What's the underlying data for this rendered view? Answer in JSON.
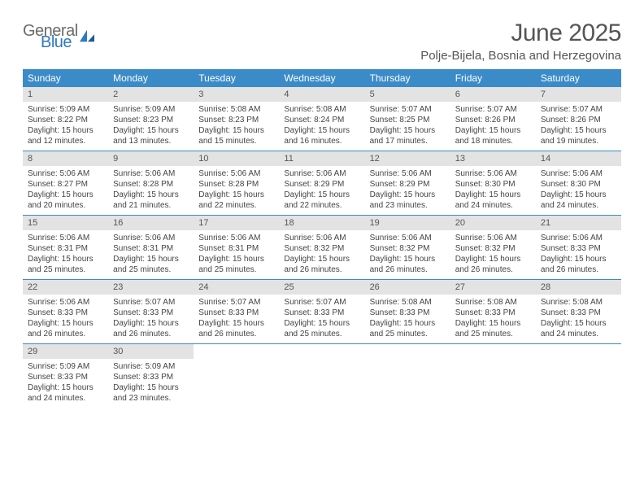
{
  "logo": {
    "general": "General",
    "blue": "Blue"
  },
  "title": "June 2025",
  "location": "Polje-Bijela, Bosnia and Herzegovina",
  "colors": {
    "header_bg": "#3b8bc9",
    "header_text": "#ffffff",
    "daynum_bg": "#e3e3e3",
    "week_border": "#3b8bc9",
    "logo_gray": "#6b6b6b",
    "logo_blue": "#2f78c2",
    "body_text": "#444444"
  },
  "day_names": [
    "Sunday",
    "Monday",
    "Tuesday",
    "Wednesday",
    "Thursday",
    "Friday",
    "Saturday"
  ],
  "weeks": [
    [
      {
        "n": "1",
        "sunrise": "Sunrise: 5:09 AM",
        "sunset": "Sunset: 8:22 PM",
        "day1": "Daylight: 15 hours",
        "day2": "and 12 minutes."
      },
      {
        "n": "2",
        "sunrise": "Sunrise: 5:09 AM",
        "sunset": "Sunset: 8:23 PM",
        "day1": "Daylight: 15 hours",
        "day2": "and 13 minutes."
      },
      {
        "n": "3",
        "sunrise": "Sunrise: 5:08 AM",
        "sunset": "Sunset: 8:23 PM",
        "day1": "Daylight: 15 hours",
        "day2": "and 15 minutes."
      },
      {
        "n": "4",
        "sunrise": "Sunrise: 5:08 AM",
        "sunset": "Sunset: 8:24 PM",
        "day1": "Daylight: 15 hours",
        "day2": "and 16 minutes."
      },
      {
        "n": "5",
        "sunrise": "Sunrise: 5:07 AM",
        "sunset": "Sunset: 8:25 PM",
        "day1": "Daylight: 15 hours",
        "day2": "and 17 minutes."
      },
      {
        "n": "6",
        "sunrise": "Sunrise: 5:07 AM",
        "sunset": "Sunset: 8:26 PM",
        "day1": "Daylight: 15 hours",
        "day2": "and 18 minutes."
      },
      {
        "n": "7",
        "sunrise": "Sunrise: 5:07 AM",
        "sunset": "Sunset: 8:26 PM",
        "day1": "Daylight: 15 hours",
        "day2": "and 19 minutes."
      }
    ],
    [
      {
        "n": "8",
        "sunrise": "Sunrise: 5:06 AM",
        "sunset": "Sunset: 8:27 PM",
        "day1": "Daylight: 15 hours",
        "day2": "and 20 minutes."
      },
      {
        "n": "9",
        "sunrise": "Sunrise: 5:06 AM",
        "sunset": "Sunset: 8:28 PM",
        "day1": "Daylight: 15 hours",
        "day2": "and 21 minutes."
      },
      {
        "n": "10",
        "sunrise": "Sunrise: 5:06 AM",
        "sunset": "Sunset: 8:28 PM",
        "day1": "Daylight: 15 hours",
        "day2": "and 22 minutes."
      },
      {
        "n": "11",
        "sunrise": "Sunrise: 5:06 AM",
        "sunset": "Sunset: 8:29 PM",
        "day1": "Daylight: 15 hours",
        "day2": "and 22 minutes."
      },
      {
        "n": "12",
        "sunrise": "Sunrise: 5:06 AM",
        "sunset": "Sunset: 8:29 PM",
        "day1": "Daylight: 15 hours",
        "day2": "and 23 minutes."
      },
      {
        "n": "13",
        "sunrise": "Sunrise: 5:06 AM",
        "sunset": "Sunset: 8:30 PM",
        "day1": "Daylight: 15 hours",
        "day2": "and 24 minutes."
      },
      {
        "n": "14",
        "sunrise": "Sunrise: 5:06 AM",
        "sunset": "Sunset: 8:30 PM",
        "day1": "Daylight: 15 hours",
        "day2": "and 24 minutes."
      }
    ],
    [
      {
        "n": "15",
        "sunrise": "Sunrise: 5:06 AM",
        "sunset": "Sunset: 8:31 PM",
        "day1": "Daylight: 15 hours",
        "day2": "and 25 minutes."
      },
      {
        "n": "16",
        "sunrise": "Sunrise: 5:06 AM",
        "sunset": "Sunset: 8:31 PM",
        "day1": "Daylight: 15 hours",
        "day2": "and 25 minutes."
      },
      {
        "n": "17",
        "sunrise": "Sunrise: 5:06 AM",
        "sunset": "Sunset: 8:31 PM",
        "day1": "Daylight: 15 hours",
        "day2": "and 25 minutes."
      },
      {
        "n": "18",
        "sunrise": "Sunrise: 5:06 AM",
        "sunset": "Sunset: 8:32 PM",
        "day1": "Daylight: 15 hours",
        "day2": "and 26 minutes."
      },
      {
        "n": "19",
        "sunrise": "Sunrise: 5:06 AM",
        "sunset": "Sunset: 8:32 PM",
        "day1": "Daylight: 15 hours",
        "day2": "and 26 minutes."
      },
      {
        "n": "20",
        "sunrise": "Sunrise: 5:06 AM",
        "sunset": "Sunset: 8:32 PM",
        "day1": "Daylight: 15 hours",
        "day2": "and 26 minutes."
      },
      {
        "n": "21",
        "sunrise": "Sunrise: 5:06 AM",
        "sunset": "Sunset: 8:33 PM",
        "day1": "Daylight: 15 hours",
        "day2": "and 26 minutes."
      }
    ],
    [
      {
        "n": "22",
        "sunrise": "Sunrise: 5:06 AM",
        "sunset": "Sunset: 8:33 PM",
        "day1": "Daylight: 15 hours",
        "day2": "and 26 minutes."
      },
      {
        "n": "23",
        "sunrise": "Sunrise: 5:07 AM",
        "sunset": "Sunset: 8:33 PM",
        "day1": "Daylight: 15 hours",
        "day2": "and 26 minutes."
      },
      {
        "n": "24",
        "sunrise": "Sunrise: 5:07 AM",
        "sunset": "Sunset: 8:33 PM",
        "day1": "Daylight: 15 hours",
        "day2": "and 26 minutes."
      },
      {
        "n": "25",
        "sunrise": "Sunrise: 5:07 AM",
        "sunset": "Sunset: 8:33 PM",
        "day1": "Daylight: 15 hours",
        "day2": "and 25 minutes."
      },
      {
        "n": "26",
        "sunrise": "Sunrise: 5:08 AM",
        "sunset": "Sunset: 8:33 PM",
        "day1": "Daylight: 15 hours",
        "day2": "and 25 minutes."
      },
      {
        "n": "27",
        "sunrise": "Sunrise: 5:08 AM",
        "sunset": "Sunset: 8:33 PM",
        "day1": "Daylight: 15 hours",
        "day2": "and 25 minutes."
      },
      {
        "n": "28",
        "sunrise": "Sunrise: 5:08 AM",
        "sunset": "Sunset: 8:33 PM",
        "day1": "Daylight: 15 hours",
        "day2": "and 24 minutes."
      }
    ],
    [
      {
        "n": "29",
        "sunrise": "Sunrise: 5:09 AM",
        "sunset": "Sunset: 8:33 PM",
        "day1": "Daylight: 15 hours",
        "day2": "and 24 minutes."
      },
      {
        "n": "30",
        "sunrise": "Sunrise: 5:09 AM",
        "sunset": "Sunset: 8:33 PM",
        "day1": "Daylight: 15 hours",
        "day2": "and 23 minutes."
      },
      null,
      null,
      null,
      null,
      null
    ]
  ]
}
